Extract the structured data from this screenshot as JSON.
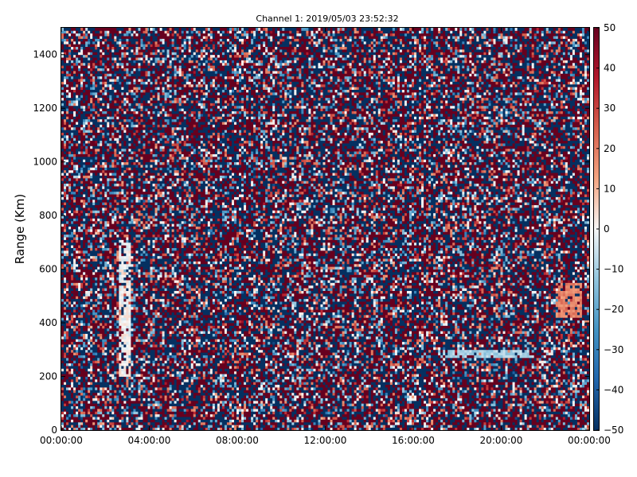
{
  "chart_data": {
    "type": "heatmap",
    "title": "Channel 1: 2019/05/03 23:52:32",
    "ylabel": "Range (Km)",
    "xlabel": "",
    "x_ticks": [
      "00:00:00",
      "04:00:00",
      "08:00:00",
      "12:00:00",
      "16:00:00",
      "20:00:00",
      "00:00:00"
    ],
    "y_ticks": [
      "0",
      "200",
      "400",
      "600",
      "800",
      "1000",
      "1200",
      "1400"
    ],
    "colorbar_ticks": [
      "50",
      "40",
      "30",
      "20",
      "10",
      "0",
      "−10",
      "−20",
      "−30",
      "−40",
      "−50"
    ],
    "x_range_hours": [
      0,
      24
    ],
    "ylim": [
      0,
      1500
    ],
    "clim": [
      -50,
      50
    ],
    "colormap": "RdBu_r",
    "colormap_stops": [
      "#053061",
      "#2166ac",
      "#4393c3",
      "#92c5de",
      "#f7f7f7",
      "#f4a582",
      "#d6604d",
      "#b2182b",
      "#67001f"
    ],
    "grid": false,
    "n_time_bins": 220,
    "n_range_bins": 150,
    "dominant_pattern": "dense noise-like alternating dark red (+50) and dark blue (-50) cells",
    "features": [
      {
        "description": "near-zero (white) streaks",
        "time_start": "02:40",
        "time_end": "03:10",
        "range_km": [
          200,
          700
        ]
      },
      {
        "description": "near-zero horizontal band",
        "time_start": "17:10",
        "time_end": "21:30",
        "range_km": [
          270,
          300
        ],
        "value": -10
      },
      {
        "description": "light red patch",
        "time_start": "22:30",
        "time_end": "23:40",
        "range_km": [
          420,
          550
        ],
        "value": 18
      }
    ]
  }
}
